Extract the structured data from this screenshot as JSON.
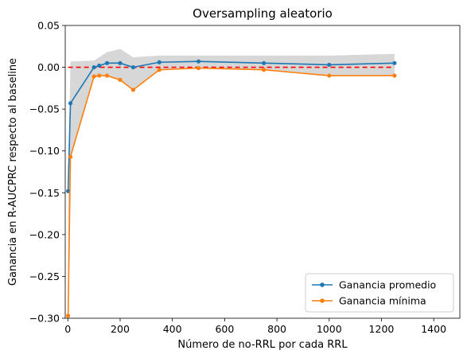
{
  "chart_data": {
    "type": "line",
    "title": "Oversampling aleatorio",
    "xlabel": "Número de no-RRL por cada RRL",
    "ylabel": "Ganancia en R-AUCPRC respecto al baseline",
    "xlim": [
      -10,
      1500
    ],
    "ylim": [
      -0.3,
      0.05
    ],
    "xticks": [
      0,
      200,
      400,
      600,
      800,
      1000,
      1200,
      1400
    ],
    "yticks": [
      -0.3,
      -0.25,
      -0.2,
      -0.15,
      -0.1,
      -0.05,
      0.0,
      0.05
    ],
    "x": [
      1,
      10,
      100,
      120,
      150,
      200,
      250,
      350,
      500,
      750,
      1000,
      1250
    ],
    "series": [
      {
        "name": "Ganancia promedio",
        "color": "#1f77b4",
        "values": [
          -0.148,
          -0.043,
          0.0,
          0.002,
          0.005,
          0.005,
          0.0,
          0.006,
          0.007,
          0.005,
          0.003,
          0.005
        ]
      },
      {
        "name": "Ganancia mínima",
        "color": "#ff7f0e",
        "values": [
          -0.297,
          -0.107,
          -0.011,
          -0.01,
          -0.01,
          -0.015,
          -0.027,
          -0.003,
          -0.001,
          -0.003,
          -0.01,
          -0.01
        ]
      }
    ],
    "band": {
      "color": "#d3d3d3",
      "lower": [
        -0.297,
        -0.107,
        -0.011,
        -0.01,
        -0.01,
        -0.015,
        -0.027,
        -0.003,
        -0.001,
        -0.003,
        -0.01,
        -0.01
      ],
      "upper": [
        -0.148,
        0.007,
        0.008,
        0.012,
        0.018,
        0.022,
        0.012,
        0.014,
        0.014,
        0.014,
        0.014,
        0.016
      ]
    },
    "baseline": {
      "y": 0.0,
      "x_range": [
        1,
        1250
      ],
      "color": "#ff0000"
    },
    "legend_position": "bottom-right",
    "grid": false
  }
}
